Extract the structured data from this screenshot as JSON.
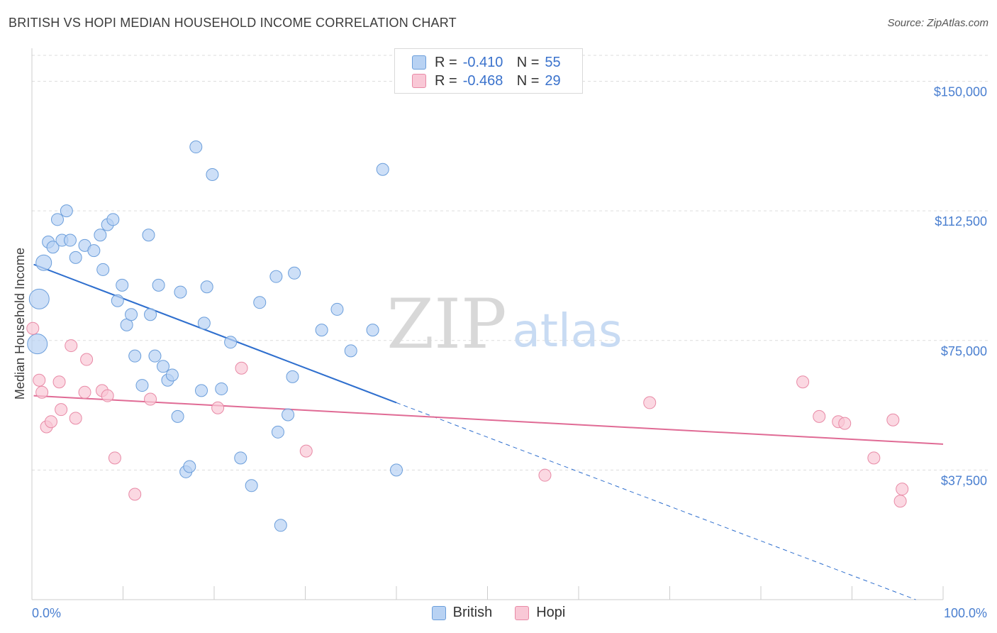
{
  "title": "BRITISH VS HOPI MEDIAN HOUSEHOLD INCOME CORRELATION CHART",
  "source": "Source: ZipAtlas.com",
  "watermark": {
    "zip": "ZIP",
    "atlas": "atlas"
  },
  "legend": {
    "r_label": "R =",
    "n_label": "N =",
    "british": {
      "r": "-0.410",
      "n": "55"
    },
    "hopi": {
      "r": "-0.468",
      "n": "29"
    }
  },
  "colors": {
    "british_fill": "#b8d2f3",
    "british_stroke": "#6b9edb",
    "british_line": "#2f6fce",
    "hopi_fill": "#f9c8d6",
    "hopi_stroke": "#e88aa6",
    "hopi_line": "#e06b95",
    "tick_text": "#4a7fd0",
    "grid": "#dddddd"
  },
  "chart_data": {
    "type": "scatter",
    "title": "BRITISH VS HOPI MEDIAN HOUSEHOLD INCOME CORRELATION CHART",
    "xlabel": "",
    "ylabel": "Median Household Income",
    "xlim": [
      0,
      100
    ],
    "ylim": [
      0,
      157500
    ],
    "x_tick_labels": [
      "0.0%",
      "100.0%"
    ],
    "y_ticks": [
      37500,
      75000,
      112500,
      150000
    ],
    "y_tick_labels": [
      "$37,500",
      "$75,000",
      "$112,500",
      "$150,000"
    ],
    "grid": true,
    "legend_position": "top-center",
    "series": [
      {
        "name": "British",
        "points": [
          [
            0.8,
            87000
          ],
          [
            0.6,
            74000
          ],
          [
            1.3,
            97500
          ],
          [
            1.8,
            103500
          ],
          [
            2.3,
            102000
          ],
          [
            2.8,
            110000
          ],
          [
            3.3,
            104000
          ],
          [
            3.8,
            112500
          ],
          [
            4.2,
            104000
          ],
          [
            4.8,
            99000
          ],
          [
            5.8,
            102500
          ],
          [
            6.8,
            101000
          ],
          [
            7.5,
            105500
          ],
          [
            7.8,
            95500
          ],
          [
            8.3,
            108500
          ],
          [
            8.9,
            110000
          ],
          [
            9.4,
            86500
          ],
          [
            9.9,
            91000
          ],
          [
            10.4,
            79500
          ],
          [
            10.9,
            82500
          ],
          [
            11.3,
            70500
          ],
          [
            12.1,
            62000
          ],
          [
            12.8,
            105500
          ],
          [
            13.0,
            82500
          ],
          [
            13.5,
            70500
          ],
          [
            13.9,
            91000
          ],
          [
            14.4,
            67500
          ],
          [
            14.9,
            63500
          ],
          [
            15.4,
            65000
          ],
          [
            16.0,
            53000
          ],
          [
            16.3,
            89000
          ],
          [
            16.9,
            37000
          ],
          [
            17.3,
            38500
          ],
          [
            18.0,
            131000
          ],
          [
            18.6,
            60500
          ],
          [
            18.9,
            80000
          ],
          [
            19.2,
            90500
          ],
          [
            19.8,
            123000
          ],
          [
            20.8,
            61000
          ],
          [
            21.8,
            74500
          ],
          [
            22.9,
            41000
          ],
          [
            24.1,
            33000
          ],
          [
            25.0,
            86000
          ],
          [
            26.8,
            93500
          ],
          [
            27.0,
            48500
          ],
          [
            27.3,
            21500
          ],
          [
            28.1,
            53500
          ],
          [
            28.8,
            94500
          ],
          [
            28.6,
            64500
          ],
          [
            31.8,
            78000
          ],
          [
            37.4,
            78000
          ],
          [
            38.5,
            124500
          ],
          [
            40.0,
            37500
          ],
          [
            33.5,
            84000
          ],
          [
            35.0,
            72000
          ]
        ]
      },
      {
        "name": "Hopi",
        "points": [
          [
            0.1,
            78500
          ],
          [
            0.8,
            63500
          ],
          [
            1.1,
            60000
          ],
          [
            1.6,
            50000
          ],
          [
            2.1,
            51500
          ],
          [
            3.0,
            63000
          ],
          [
            3.2,
            55000
          ],
          [
            4.3,
            73500
          ],
          [
            4.8,
            52500
          ],
          [
            5.8,
            60000
          ],
          [
            6.0,
            69500
          ],
          [
            7.7,
            60500
          ],
          [
            8.3,
            59000
          ],
          [
            9.1,
            41000
          ],
          [
            11.3,
            30500
          ],
          [
            13.0,
            58000
          ],
          [
            20.4,
            55500
          ],
          [
            23.0,
            67000
          ],
          [
            30.1,
            43000
          ],
          [
            56.3,
            36000
          ],
          [
            67.8,
            57000
          ],
          [
            84.6,
            63000
          ],
          [
            86.4,
            53000
          ],
          [
            88.5,
            51500
          ],
          [
            89.2,
            51000
          ],
          [
            92.4,
            41000
          ],
          [
            94.5,
            52000
          ],
          [
            95.3,
            28500
          ],
          [
            95.5,
            32000
          ]
        ]
      }
    ],
    "trend_lines": [
      {
        "name": "British",
        "x": [
          0.2,
          40.0
        ],
        "y": [
          97000,
          57000
        ],
        "dashed_to": [
          97.0,
          0
        ]
      },
      {
        "name": "Hopi",
        "x": [
          0.2,
          100.0
        ],
        "y": [
          59000,
          45000
        ]
      }
    ]
  }
}
